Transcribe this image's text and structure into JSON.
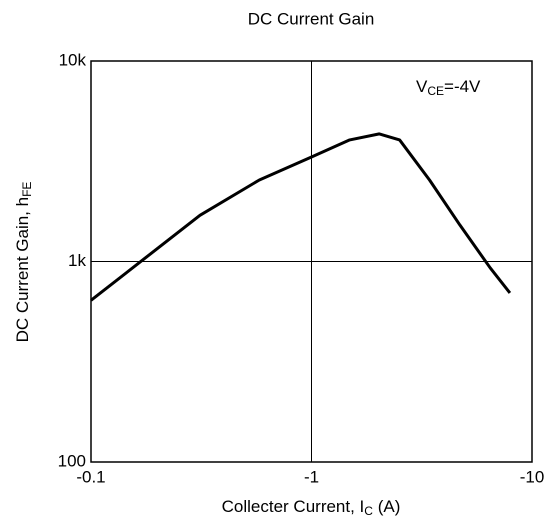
{
  "chart_data": {
    "type": "line",
    "title": "DC Current Gain",
    "x_label": [
      "Collecter Current, I",
      "C",
      " (A)"
    ],
    "y_label": [
      "DC Current Gain, h",
      "FE"
    ],
    "annotation": [
      "V",
      "CE",
      "=-4V"
    ],
    "x": [
      -0.1,
      -0.176,
      -0.312,
      -0.58,
      -1,
      -1.49,
      -2.03,
      -2.51,
      -3.43,
      -4.71,
      -6.46,
      -7.94
    ],
    "series": [
      {
        "name": "hFE",
        "color": "#000000",
        "values": [
          640,
          1040,
          1700,
          2550,
          3320,
          4040,
          4330,
          4040,
          2550,
          1520,
          930,
          697
        ]
      }
    ],
    "xlim": [
      -0.1,
      -10
    ],
    "xticks": [
      -0.1,
      -1,
      -10
    ],
    "ylim": [
      100,
      10000
    ],
    "yticks": [
      100,
      {
        "value": 1000,
        "label": "1k"
      },
      {
        "value": 10000,
        "label": "10k"
      }
    ],
    "xscale": "log",
    "yscale": "log",
    "grid": true
  }
}
